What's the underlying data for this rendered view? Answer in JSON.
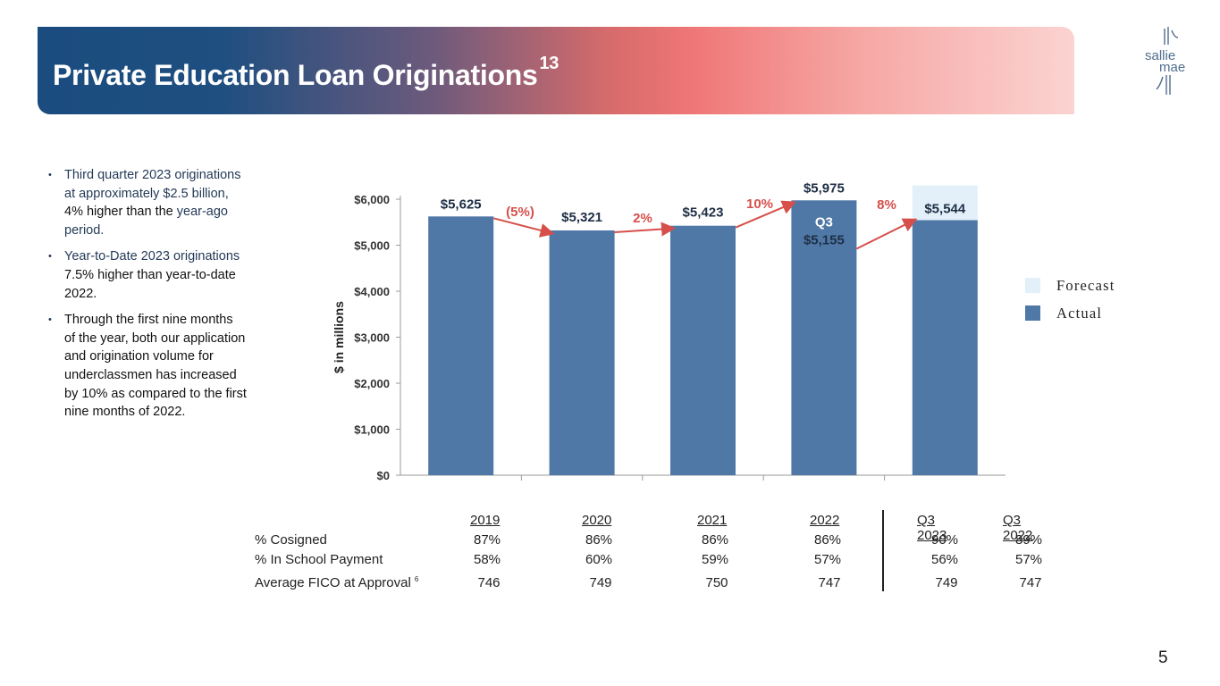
{
  "header": {
    "title": "Private Education Loan Originations",
    "title_sup": "13"
  },
  "logo": {
    "line1": "sallie",
    "line2": "mae"
  },
  "bullets": [
    {
      "text": "Third quarter 2023 originations at approximately $2.5 billion, ",
      "emph": "4% higher than the",
      "tail": " year-ago period."
    },
    {
      "text": "Year-to-Date 2023 originations ",
      "emph": "7.5% higher than year-to-date 2022.",
      "tail": ""
    },
    {
      "text": "Through the first nine months of the year, both our application and origination volume for underclassmen has increased by 10% as compared to the first nine months of 2022.",
      "emph": "",
      "tail": ""
    }
  ],
  "chart_data": {
    "type": "bar",
    "categories": [
      "",
      "",
      "",
      "",
      ""
    ],
    "ylabel": "$ in millions",
    "ylim": [
      0,
      6000
    ],
    "yticks": [
      0,
      1000,
      2000,
      3000,
      4000,
      5000,
      6000
    ],
    "ytick_labels": [
      "$0",
      "$1,000",
      "$2,000",
      "$3,000",
      "$4,000",
      "$5,000",
      "$6,000"
    ],
    "series": [
      {
        "name": "Actual",
        "values": [
          5625,
          5321,
          5423,
          5975,
          5544
        ]
      },
      {
        "name": "Forecast",
        "values": [
          0,
          0,
          0,
          0,
          6300
        ]
      }
    ],
    "bar_labels": [
      "$5,625",
      "$5,321",
      "$5,423",
      "$5,975",
      "$5,544"
    ],
    "inner_label": {
      "bar_index": 3,
      "line1": "Q3",
      "line2": "$5,155"
    },
    "growth_labels": [
      "(5%)",
      "2%",
      "10%",
      "8%"
    ],
    "legend": [
      {
        "name": "Forecast",
        "color": "#e3f0fa"
      },
      {
        "name": "Actual",
        "color": "#5078a6"
      }
    ],
    "legend_position": "right",
    "colors": {
      "actual": "#5078a6",
      "forecast": "#e3f0fa",
      "growth": "#d64f4a"
    }
  },
  "stats_table": {
    "columns": [
      "2019",
      "2020",
      "2021",
      "2022",
      "Q3 2023",
      "Q3 2022"
    ],
    "rows": [
      {
        "label": "% Cosigned",
        "sup": "",
        "values": [
          "87%",
          "86%",
          "86%",
          "86%",
          "90%",
          "89%"
        ]
      },
      {
        "label": "% In School Payment",
        "sup": "",
        "values": [
          "58%",
          "60%",
          "59%",
          "57%",
          "56%",
          "57%"
        ]
      },
      {
        "label": "Average FICO at Approval",
        "sup": "6",
        "values": [
          "746",
          "749",
          "750",
          "747",
          "749",
          "747"
        ]
      }
    ]
  },
  "page_number": "5"
}
